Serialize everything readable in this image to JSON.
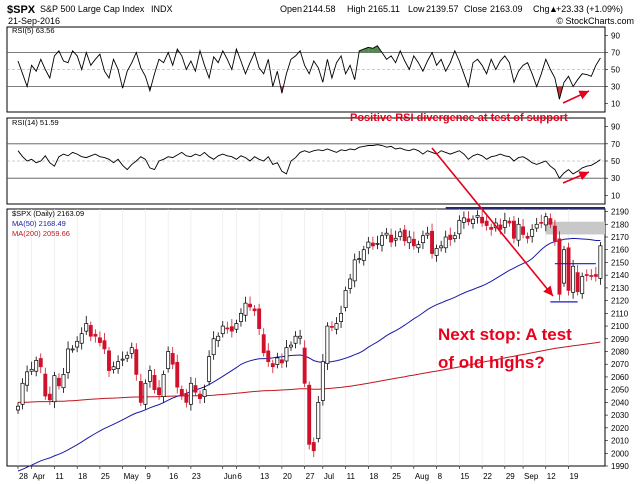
{
  "header": {
    "symbol": "$SPX",
    "name": "S&P 500 Large Cap Index",
    "exchange": "INDX",
    "date": "21-Sep-2016",
    "open_label": "Open",
    "open": "2144.58",
    "high_label": "High",
    "high": "2165.11",
    "low_label": "Low",
    "low": "2139.57",
    "close_label": "Close",
    "close": "2163.09",
    "chg_label": "Chg",
    "chg": "+23.33 (+1.09%)",
    "chg_arrow": "▲",
    "watermark": "© StockCharts.com"
  },
  "colors": {
    "up_candle": "#000000",
    "down_candle": "#d0112b",
    "ma50": "#1a1aa8",
    "ma200": "#c0171f",
    "rsi_overbought_fill": "#3a7d3a",
    "rsi_oversold_fill": "#c0171f",
    "annotation": "#e8001c",
    "resistance_line": "#1a1acc",
    "gap_box": "#c8c8c8"
  },
  "chart_data": [
    {
      "type": "line",
      "name": "RSI(5)",
      "label": "RSI(5) 63.56",
      "ylim": [
        0,
        100
      ],
      "y_ticks": [
        10,
        30,
        50,
        70,
        90
      ],
      "reference_levels": [
        30,
        50,
        70
      ],
      "values": [
        60,
        45,
        30,
        55,
        48,
        62,
        50,
        40,
        66,
        72,
        60,
        58,
        72,
        66,
        50,
        70,
        55,
        62,
        68,
        48,
        40,
        62,
        50,
        28,
        48,
        58,
        70,
        52,
        42,
        25,
        45,
        62,
        58,
        70,
        55,
        74,
        66,
        50,
        60,
        48,
        72,
        55,
        40,
        65,
        58,
        72,
        62,
        50,
        74,
        60,
        45,
        58,
        70,
        52,
        45,
        62,
        30,
        48,
        22,
        45,
        62,
        66,
        72,
        55,
        45,
        60,
        52,
        35,
        62,
        40,
        58,
        66,
        45,
        55,
        38,
        72,
        74,
        76,
        75,
        78,
        70,
        62,
        66,
        58,
        72,
        60,
        50,
        66,
        58,
        48,
        60,
        70,
        55,
        62,
        48,
        58,
        72,
        60,
        45,
        30,
        58,
        62,
        55,
        45,
        62,
        50,
        60,
        66,
        58,
        35,
        48,
        55,
        58,
        45,
        30,
        45,
        62,
        50,
        40,
        15,
        35,
        42,
        30,
        38,
        45,
        44,
        42,
        55,
        63.56
      ]
    },
    {
      "type": "line",
      "name": "RSI(14)",
      "label": "RSI(14) 51.59",
      "ylim": [
        0,
        100
      ],
      "y_ticks": [
        10,
        30,
        50,
        70,
        90
      ],
      "reference_levels": [
        30,
        50,
        70
      ],
      "values": [
        62,
        55,
        50,
        52,
        48,
        50,
        56,
        48,
        44,
        55,
        58,
        56,
        60,
        58,
        55,
        54,
        56,
        58,
        55,
        54,
        52,
        48,
        52,
        45,
        40,
        46,
        50,
        55,
        52,
        42,
        40,
        50,
        52,
        55,
        54,
        57,
        60,
        56,
        55,
        58,
        56,
        60,
        55,
        52,
        56,
        58,
        56,
        55,
        52,
        56,
        54,
        50,
        55,
        52,
        50,
        55,
        46,
        48,
        38,
        35,
        50,
        54,
        60,
        62,
        60,
        62,
        63,
        62,
        64,
        62,
        60,
        63,
        62,
        64,
        63,
        66,
        67,
        68,
        68,
        69,
        68,
        66,
        67,
        64,
        65,
        63,
        62,
        64,
        62,
        58,
        62,
        60,
        58,
        62,
        60,
        58,
        60,
        62,
        58,
        52,
        56,
        58,
        56,
        52,
        55,
        56,
        58,
        56,
        55,
        50,
        54,
        55,
        52,
        48,
        46,
        48,
        50,
        44,
        40,
        30,
        36,
        40,
        35,
        38,
        42,
        44,
        45,
        48,
        51.59
      ]
    },
    {
      "type": "candlestick",
      "name": "$SPX (Daily)",
      "label": "$SPX (Daily) 2163.09",
      "ylim": [
        1990,
        2192
      ],
      "y_ticks": [
        1990,
        2000,
        2010,
        2020,
        2030,
        2040,
        2050,
        2060,
        2070,
        2080,
        2090,
        2100,
        2110,
        2120,
        2130,
        2140,
        2150,
        2160,
        2170,
        2180,
        2190
      ],
      "x_ticks": [
        {
          "label": "28",
          "index": 0
        },
        {
          "label": "Apr",
          "index": 3
        },
        {
          "label": "11",
          "index": 8
        },
        {
          "label": "18",
          "index": 13
        },
        {
          "label": "25",
          "index": 18
        },
        {
          "label": "May",
          "index": 23
        },
        {
          "label": "9",
          "index": 28
        },
        {
          "label": "16",
          "index": 33
        },
        {
          "label": "23",
          "index": 38
        },
        {
          "label": "Jun",
          "index": 45
        },
        {
          "label": "6",
          "index": 48
        },
        {
          "label": "13",
          "index": 53
        },
        {
          "label": "20",
          "index": 58
        },
        {
          "label": "27",
          "index": 63
        },
        {
          "label": "Jul",
          "index": 67
        },
        {
          "label": "11",
          "index": 72
        },
        {
          "label": "18",
          "index": 77
        },
        {
          "label": "25",
          "index": 82
        },
        {
          "label": "Aug",
          "index": 87
        },
        {
          "label": "8",
          "index": 92
        },
        {
          "label": "15",
          "index": 97
        },
        {
          "label": "22",
          "index": 102
        },
        {
          "label": "29",
          "index": 107
        },
        {
          "label": "Sep",
          "index": 111
        },
        {
          "label": "12",
          "index": 116
        },
        {
          "label": "19",
          "index": 121
        }
      ],
      "close": [
        2037,
        2055,
        2064,
        2066,
        2073,
        2068,
        2045,
        2042,
        2061,
        2053,
        2062,
        2082,
        2082,
        2088,
        2094,
        2102,
        2092,
        2092,
        2087,
        2082,
        2065,
        2068,
        2072,
        2074,
        2077,
        2083,
        2062,
        2040,
        2055,
        2065,
        2050,
        2046,
        2062,
        2080,
        2070,
        2052,
        2045,
        2040,
        2055,
        2048,
        2043,
        2050,
        2076,
        2090,
        2092,
        2100,
        2098,
        2096,
        2102,
        2110,
        2118,
        2115,
        2112,
        2098,
        2079,
        2072,
        2068,
        2075,
        2071,
        2083,
        2085,
        2092,
        2092,
        2055,
        2007,
        2002,
        2040,
        2072,
        2100,
        2099,
        2102,
        2110,
        2128,
        2137,
        2152,
        2153,
        2160,
        2166,
        2163,
        2165,
        2171,
        2173,
        2166,
        2169,
        2174,
        2167,
        2170,
        2163,
        2164,
        2171,
        2173,
        2157,
        2161,
        2163,
        2170,
        2168,
        2171,
        2183,
        2185,
        2182,
        2184,
        2187,
        2181,
        2179,
        2176,
        2181,
        2176,
        2183,
        2181,
        2169,
        2180,
        2172,
        2169,
        2176,
        2180,
        2181,
        2186,
        2180,
        2167,
        2125,
        2160,
        2128,
        2147,
        2127,
        2139,
        2140,
        2139,
        2139,
        2163.09
      ],
      "series": [
        {
          "name": "MA(50) 2168.49",
          "last": 2168.49
        },
        {
          "name": "MA(200) 2059.66",
          "last": 2059.66
        }
      ]
    }
  ],
  "annotations": {
    "rsi_divergence": "Positive RSI divergence at test of support",
    "next_stop_line1": "Next stop: A test",
    "next_stop_line2": "of old highs?"
  }
}
